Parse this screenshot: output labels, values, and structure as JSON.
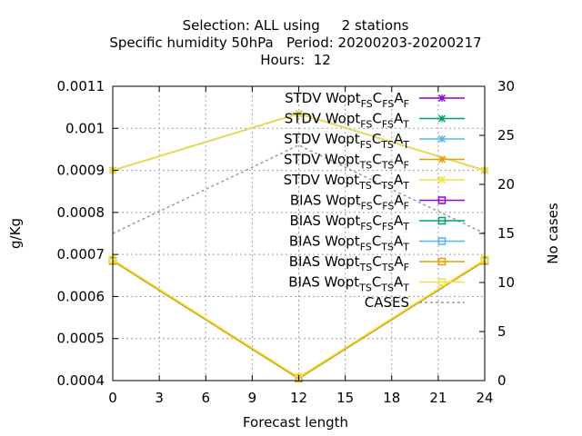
{
  "chart_data": {
    "type": "line",
    "title": [
      "Selection: ALL using     2 stations",
      "Specific humidity 50hPa   Period: 20200203-20200217",
      "Hours:  12"
    ],
    "xlabel": "Forecast length",
    "ylabel": "g/Kg",
    "y2label": "No cases",
    "x": [
      0,
      12,
      24
    ],
    "xticks": [
      "0",
      "3",
      "6",
      "9",
      "12",
      "15",
      "18",
      "21",
      "24"
    ],
    "yticks": [
      "0.0004",
      "0.0005",
      "0.0006",
      "0.0007",
      "0.0008",
      "0.0009",
      "0.001",
      "0.0011"
    ],
    "y2ticks": [
      "0",
      "5",
      "10",
      "15",
      "20",
      "25",
      "30"
    ],
    "xlim": [
      0,
      24
    ],
    "ylim": [
      0.0004,
      0.0011
    ],
    "y2lim": [
      0,
      30
    ],
    "grid": true,
    "legend_position": "top-right",
    "series": [
      {
        "name": "STDV Wopt",
        "subs": [
          "FS",
          "FS",
          "F"
        ],
        "marker": "x",
        "color": "#9400d3",
        "axis": "y",
        "values": [
          0.0009,
          0.001035,
          0.0009
        ]
      },
      {
        "name": "STDV Wopt",
        "subs": [
          "FS",
          "FS",
          "T"
        ],
        "marker": "x",
        "color": "#009e73",
        "axis": "y",
        "values": [
          0.0009,
          0.001035,
          0.0009
        ]
      },
      {
        "name": "STDV Wopt",
        "subs": [
          "FS",
          "TS",
          "T"
        ],
        "marker": "x",
        "color": "#56b4e9",
        "axis": "y",
        "values": [
          0.0009,
          0.001035,
          0.0009
        ]
      },
      {
        "name": "STDV Wopt",
        "subs": [
          "TS",
          "TS",
          "F"
        ],
        "marker": "x",
        "color": "#e69f00",
        "axis": "y",
        "values": [
          0.0009,
          0.001035,
          0.0009
        ]
      },
      {
        "name": "STDV Wopt",
        "subs": [
          "TS",
          "TS",
          "T"
        ],
        "marker": "x",
        "color": "#f0e442",
        "axis": "y",
        "values": [
          0.0009,
          0.001035,
          0.0009
        ]
      },
      {
        "name": "BIAS Wopt",
        "subs": [
          "FS",
          "FS",
          "F"
        ],
        "marker": "square",
        "color": "#9400d3",
        "axis": "y",
        "values": [
          0.000685,
          0.000405,
          0.000685
        ]
      },
      {
        "name": "BIAS Wopt",
        "subs": [
          "FS",
          "FS",
          "T"
        ],
        "marker": "square",
        "color": "#009e73",
        "axis": "y",
        "values": [
          0.000685,
          0.000405,
          0.000685
        ]
      },
      {
        "name": "BIAS Wopt",
        "subs": [
          "FS",
          "TS",
          "T"
        ],
        "marker": "square",
        "color": "#56b4e9",
        "axis": "y",
        "values": [
          0.000685,
          0.000405,
          0.000685
        ]
      },
      {
        "name": "BIAS Wopt",
        "subs": [
          "TS",
          "TS",
          "F"
        ],
        "marker": "square",
        "color": "#e69f00",
        "axis": "y",
        "values": [
          0.000685,
          0.000405,
          0.000685
        ]
      },
      {
        "name": "BIAS Wopt",
        "subs": [
          "TS",
          "TS",
          "T"
        ],
        "marker": "square",
        "color": "#f0e442",
        "axis": "y",
        "values": [
          0.000688,
          0.000408,
          0.000688
        ]
      },
      {
        "name": "CASES",
        "subs": [],
        "marker": "none",
        "color": "#999999",
        "dashed": true,
        "axis": "y2",
        "values": [
          15,
          24,
          15
        ]
      }
    ]
  }
}
